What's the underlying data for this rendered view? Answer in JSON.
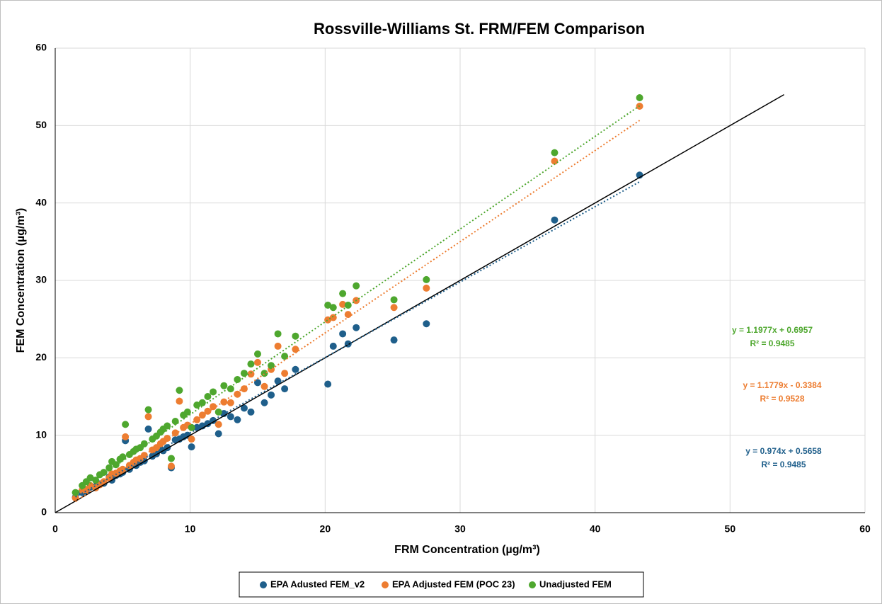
{
  "chart_data": {
    "type": "scatter",
    "title": "Rossville-Williams St. FRM/FEM Comparison",
    "x_label": "FRM Concentration (µg/m³)",
    "y_label": "FEM Concentration (µg/m³)",
    "xlim": [
      0,
      60
    ],
    "xticks": [
      0,
      10,
      20,
      30,
      40,
      50,
      60
    ],
    "ylim": [
      0,
      60
    ],
    "yticks": [
      0,
      10,
      20,
      30,
      40,
      50,
      60
    ],
    "grid": true,
    "legend": "bottom",
    "x": [
      1.5,
      2,
      2.3,
      2.6,
      3,
      3.3,
      3.6,
      4,
      4.2,
      4.5,
      4.8,
      5,
      5.2,
      5.5,
      5.8,
      6,
      6.3,
      6.6,
      6.9,
      7.2,
      7.5,
      7.8,
      8,
      8.3,
      8.6,
      8.9,
      9.2,
      9.5,
      9.8,
      10.1,
      10.5,
      10.9,
      11.3,
      11.7,
      12.1,
      12.5,
      13,
      13.5,
      14,
      14.5,
      15,
      15.5,
      16,
      16.5,
      17,
      17.8,
      20.2,
      20.6,
      21.3,
      21.7,
      22.3,
      25.1,
      27.5,
      37,
      43.3
    ],
    "series": [
      {
        "name": "EPA Adusted FEM_v2",
        "color": "#1f5f8b",
        "values": [
          2.0,
          2.6,
          2.8,
          3.3,
          3.4,
          3.7,
          3.8,
          4.6,
          4.2,
          4.8,
          5.0,
          5.2,
          9.3,
          5.6,
          6.3,
          6.1,
          6.5,
          6.7,
          10.8,
          7.3,
          7.6,
          8.2,
          8.0,
          8.4,
          5.8,
          9.4,
          9.5,
          9.8,
          10.0,
          8.5,
          11.0,
          11.2,
          11.5,
          11.9,
          10.2,
          12.8,
          12.4,
          12.0,
          13.5,
          13.0,
          16.8,
          14.2,
          15.2,
          17.0,
          16.0,
          18.5,
          16.6,
          21.5,
          23.1,
          21.8,
          23.9,
          22.3,
          24.4,
          37.8,
          43.6
        ],
        "trendline": {
          "slope": 0.974,
          "intercept": 0.5658,
          "x_range": [
            1.5,
            43.3
          ],
          "equation": "y = 0.974x + 0.5658",
          "r2": "R² = 0.9485"
        }
      },
      {
        "name": "EPA Adjusted FEM (POC 23)",
        "color": "#ed7d31",
        "values": [
          1.9,
          2.9,
          3.0,
          3.5,
          3.2,
          3.6,
          4.0,
          4.5,
          5.0,
          5.1,
          5.4,
          5.6,
          9.8,
          6.1,
          6.5,
          6.8,
          7.0,
          7.4,
          12.4,
          8.1,
          8.4,
          8.9,
          9.2,
          9.6,
          6.0,
          10.3,
          14.4,
          11.0,
          11.3,
          9.5,
          12.0,
          12.6,
          13.1,
          13.7,
          11.4,
          14.3,
          14.2,
          15.3,
          16.0,
          17.9,
          19.4,
          16.3,
          18.5,
          21.5,
          18.0,
          21.1,
          24.9,
          25.2,
          26.9,
          25.6,
          27.4,
          26.5,
          29.0,
          45.4,
          52.5
        ],
        "trendline": {
          "slope": 1.1779,
          "intercept": -0.3384,
          "x_range": [
            1.5,
            43.3
          ],
          "equation": "y = 1.1779x - 0.3384",
          "r2": "R² = 0.9528"
        }
      },
      {
        "name": "Unadjusted FEM",
        "color": "#4ea72e",
        "values": [
          2.6,
          3.5,
          4.0,
          4.5,
          4.2,
          4.9,
          5.2,
          5.8,
          6.6,
          6.2,
          6.9,
          7.2,
          11.4,
          7.5,
          7.9,
          8.2,
          8.4,
          8.9,
          13.3,
          9.5,
          9.9,
          10.4,
          10.8,
          11.2,
          7.0,
          11.8,
          15.8,
          12.6,
          13.0,
          11.0,
          13.9,
          14.2,
          15.0,
          15.6,
          13.0,
          16.4,
          16.0,
          17.2,
          18.0,
          19.2,
          20.5,
          18.0,
          19.0,
          23.1,
          20.2,
          22.8,
          26.8,
          26.5,
          28.3,
          26.8,
          29.3,
          27.5,
          30.1,
          46.5,
          53.6
        ],
        "trendline": {
          "slope": 1.1977,
          "intercept": 0.6957,
          "x_range": [
            1.5,
            43.3
          ],
          "equation": "y = 1.1977x + 0.6957",
          "r2": "R² = 0.9485"
        }
      }
    ],
    "reference_line": {
      "x": [
        0,
        54
      ],
      "y": [
        0,
        54
      ],
      "color": "#000000"
    }
  }
}
